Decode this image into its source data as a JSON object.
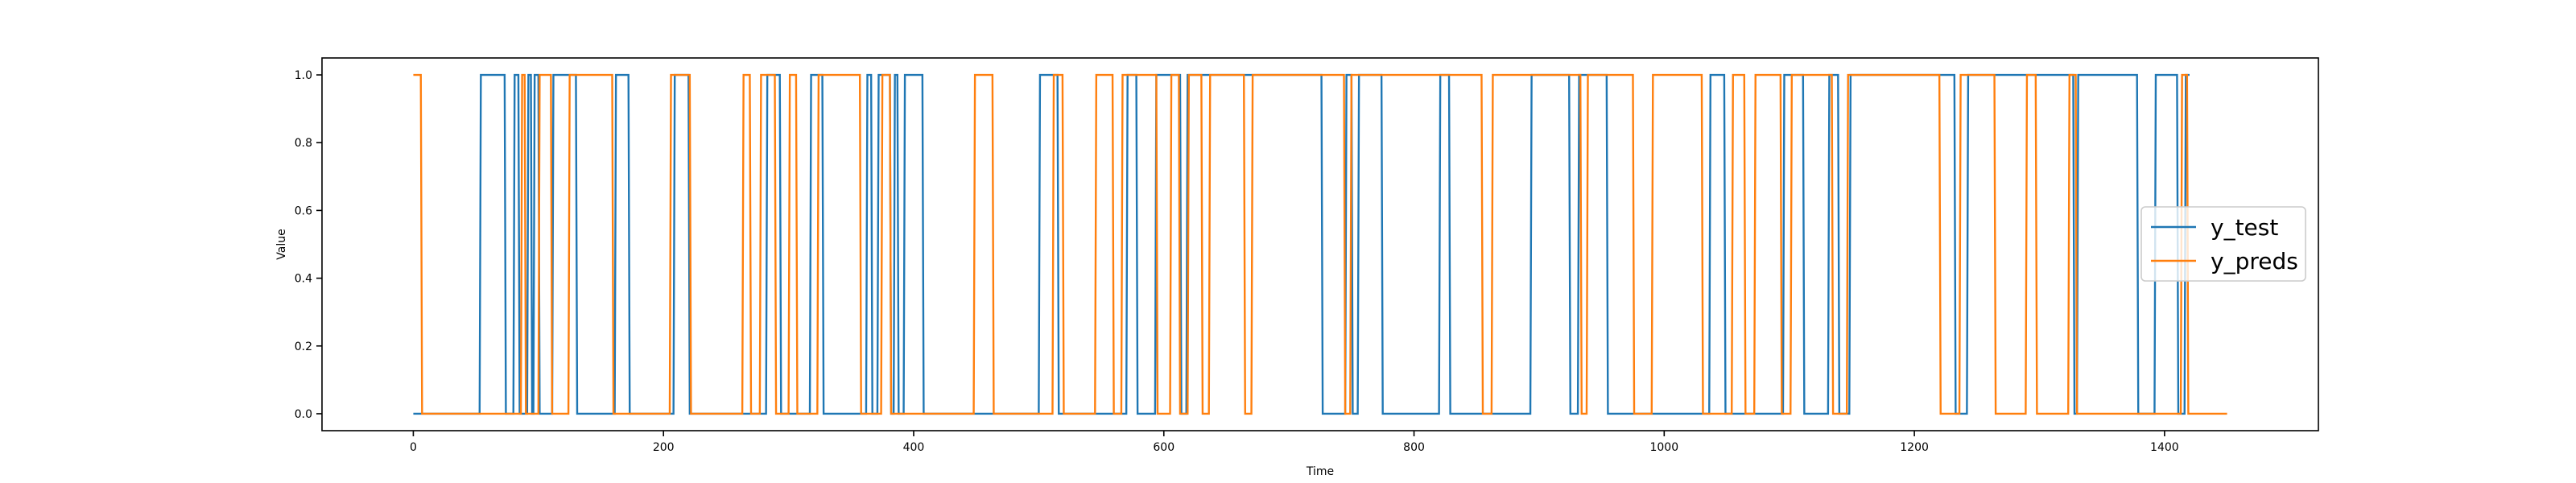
{
  "chart_data": {
    "type": "line",
    "title": "",
    "xlabel": "Time",
    "ylabel": "Value",
    "xlim": [
      -73,
      1523
    ],
    "ylim": [
      -0.05,
      1.05
    ],
    "xticks": [
      0,
      200,
      400,
      600,
      800,
      1000,
      1200,
      1400
    ],
    "yticks": [
      0.0,
      0.2,
      0.4,
      0.6,
      0.8,
      1.0
    ],
    "xtick_labels": [
      "0",
      "200",
      "400",
      "600",
      "800",
      "1000",
      "1200",
      "1400"
    ],
    "ytick_labels": [
      "0.0",
      "0.2",
      "0.4",
      "0.6",
      "0.8",
      "1.0"
    ],
    "grid": false,
    "legend_position": "center-right",
    "series": [
      {
        "name": "y_test",
        "color": "#1f77b4",
        "x": [
          0,
          53,
          54,
          73,
          74,
          80,
          81,
          84,
          85,
          91,
          92,
          94,
          95,
          96,
          97,
          100,
          101,
          111,
          112,
          130,
          131,
          161,
          162,
          172,
          173,
          208,
          209,
          220,
          221,
          282,
          283,
          293,
          294,
          317,
          318,
          327,
          328,
          362,
          363,
          366,
          367,
          371,
          372,
          381,
          382,
          384,
          385,
          387,
          388,
          392,
          393,
          407,
          408,
          500,
          501,
          515,
          516,
          570,
          571,
          578,
          579,
          593,
          594,
          613,
          614,
          618,
          619,
          726,
          727,
          745,
          746,
          750,
          751,
          755,
          756,
          774,
          775,
          820,
          821,
          828,
          829,
          893,
          894,
          924,
          925,
          931,
          932,
          954,
          955,
          1036,
          1037,
          1048,
          1049,
          1095,
          1096,
          1111,
          1112,
          1131,
          1132,
          1139,
          1140,
          1148,
          1149,
          1232,
          1233,
          1242,
          1243,
          1327,
          1328,
          1330,
          1331,
          1378,
          1379,
          1392,
          1393,
          1410,
          1411,
          1416,
          1417,
          1420
        ],
        "y": [
          0,
          0,
          1,
          1,
          0,
          0,
          1,
          1,
          0,
          0,
          1,
          1,
          0,
          0,
          1,
          1,
          0,
          0,
          1,
          1,
          0,
          0,
          1,
          1,
          0,
          0,
          1,
          1,
          0,
          0,
          1,
          1,
          0,
          0,
          1,
          1,
          0,
          0,
          1,
          1,
          0,
          0,
          1,
          1,
          0,
          0,
          1,
          1,
          0,
          0,
          1,
          1,
          0,
          0,
          1,
          1,
          0,
          0,
          1,
          1,
          0,
          0,
          1,
          1,
          0,
          0,
          1,
          1,
          0,
          0,
          1,
          1,
          0,
          0,
          1,
          1,
          0,
          0,
          1,
          1,
          0,
          0,
          1,
          1,
          0,
          0,
          1,
          1,
          0,
          0,
          1,
          1,
          0,
          0,
          1,
          1,
          0,
          0,
          1,
          1,
          0,
          0,
          1,
          1,
          0,
          0,
          1,
          1,
          0,
          0,
          1,
          1,
          0,
          0,
          1,
          1,
          0,
          0,
          1,
          1
        ]
      },
      {
        "name": "y_preds",
        "color": "#ff7f0e",
        "x": [
          0,
          6,
          7,
          86,
          87,
          89,
          90,
          100,
          101,
          110,
          111,
          124,
          125,
          159,
          160,
          205,
          206,
          221,
          222,
          263,
          264,
          269,
          270,
          277,
          278,
          289,
          290,
          300,
          301,
          306,
          307,
          323,
          324,
          357,
          358,
          374,
          375,
          381,
          382,
          448,
          449,
          463,
          464,
          511,
          512,
          519,
          520,
          545,
          546,
          559,
          560,
          566,
          567,
          594,
          595,
          605,
          606,
          612,
          613,
          619,
          620,
          630,
          631,
          636,
          637,
          664,
          665,
          670,
          671,
          744,
          745,
          749,
          750,
          854,
          855,
          862,
          863,
          933,
          934,
          938,
          939,
          975,
          976,
          990,
          991,
          1030,
          1031,
          1054,
          1055,
          1064,
          1065,
          1072,
          1073,
          1093,
          1094,
          1101,
          1102,
          1134,
          1135,
          1146,
          1147,
          1220,
          1221,
          1236,
          1237,
          1264,
          1265,
          1289,
          1290,
          1297,
          1298,
          1323,
          1324,
          1329,
          1330,
          1413,
          1414,
          1418,
          1419,
          1450
        ],
        "y": [
          1,
          1,
          0,
          0,
          1,
          1,
          0,
          0,
          1,
          1,
          0,
          0,
          1,
          1,
          0,
          0,
          1,
          1,
          0,
          0,
          1,
          1,
          0,
          0,
          1,
          1,
          0,
          0,
          1,
          1,
          0,
          0,
          1,
          1,
          0,
          0,
          1,
          1,
          0,
          0,
          1,
          1,
          0,
          0,
          1,
          1,
          0,
          0,
          1,
          1,
          0,
          0,
          1,
          1,
          0,
          0,
          1,
          1,
          0,
          0,
          1,
          1,
          0,
          0,
          1,
          1,
          0,
          0,
          1,
          1,
          0,
          0,
          1,
          1,
          0,
          0,
          1,
          1,
          0,
          0,
          1,
          1,
          0,
          0,
          1,
          1,
          0,
          0,
          1,
          1,
          0,
          0,
          1,
          1,
          0,
          0,
          1,
          1,
          0,
          0,
          1,
          1,
          0,
          0,
          1,
          1,
          0,
          0,
          1,
          1,
          0,
          0,
          1,
          1,
          0,
          0,
          1,
          1,
          0,
          0
        ]
      }
    ]
  }
}
